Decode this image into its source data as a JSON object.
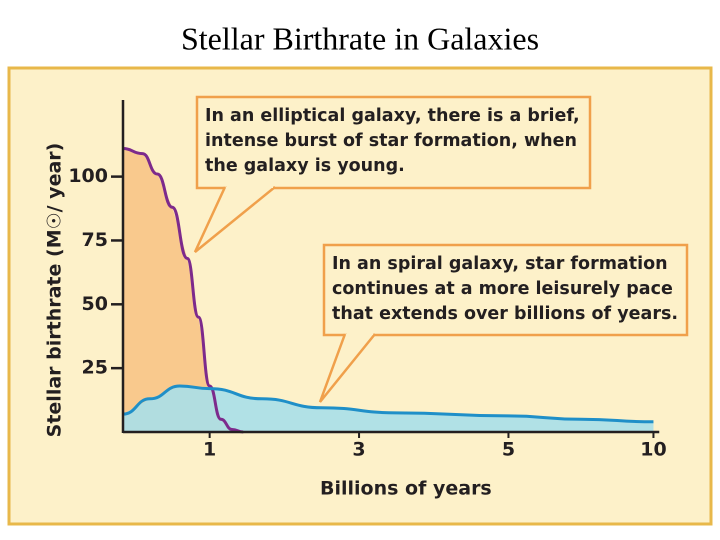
{
  "title": "Stellar Birthrate in Galaxies",
  "chart_data": {
    "type": "area",
    "x_label": "Billions of years",
    "y_label": "Stellar birthrate (M☉/ year)",
    "xlim": [
      -0.16,
      10.2
    ],
    "ylim": [
      0,
      130
    ],
    "xticks": [
      1,
      3,
      5,
      10
    ],
    "yticks": [
      25,
      50,
      75,
      100
    ],
    "series": [
      {
        "color": "#7d2a8c",
        "fill": "#f9c98d",
        "x": [
          -0.16,
          0.1,
          0.3,
          0.5,
          0.7,
          0.85,
          1.0,
          1.15,
          1.3,
          1.45
        ],
        "values": [
          111,
          109,
          101,
          88,
          68,
          45,
          18,
          5,
          1,
          0
        ]
      },
      {
        "color": "#1f8fc8",
        "fill": "#a9dfe9",
        "x": [
          -0.16,
          0.2,
          0.6,
          1.0,
          1.7,
          2.5,
          3.5,
          5,
          7.5,
          10
        ],
        "values": [
          7,
          13,
          18,
          17,
          13,
          9.5,
          7.5,
          6.3,
          5,
          4
        ]
      }
    ],
    "annotations": [
      {
        "lines": [
          "In an elliptical galaxy, there is a brief,",
          "intense burst of star formation, when",
          "the galaxy is young."
        ]
      },
      {
        "lines": [
          "In an spiral galaxy, star formation",
          "continues at a more leisurely pace",
          "that extends over billions of years."
        ]
      }
    ]
  }
}
